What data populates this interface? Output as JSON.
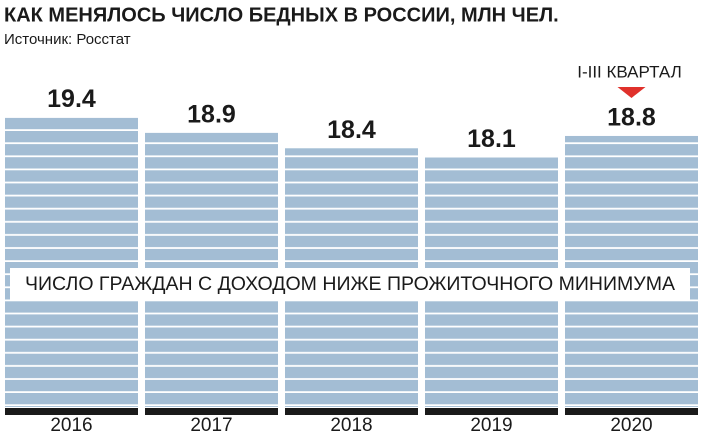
{
  "chart_data": {
    "type": "bar",
    "title": "КАК МЕНЯЛОСЬ ЧИСЛО БЕДНЫХ В РОССИИ, МЛН ЧЕЛ.",
    "source": "Источник: Росстат",
    "categories": [
      "2016",
      "2017",
      "2018",
      "2019",
      "2020"
    ],
    "values": [
      19.4,
      18.9,
      18.4,
      18.1,
      18.8
    ],
    "color": "#a3bdd4",
    "ylim": [
      10,
      20
    ],
    "band_label": "ЧИСЛО ГРАЖДАН С ДОХОДОМ НИЖЕ ПРОЖИТОЧНОГО МИНИМУМА",
    "annotation": {
      "category": "2020",
      "text": "I-III КВАРТАЛ",
      "color": "#e0312b"
    }
  }
}
